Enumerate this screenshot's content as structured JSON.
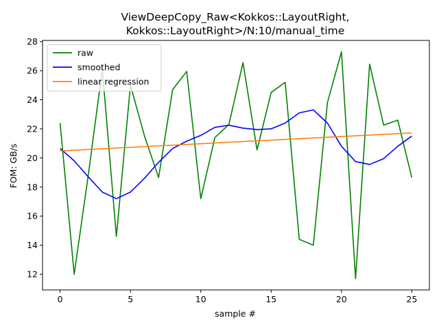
{
  "chart_data": {
    "type": "line",
    "title_lines": [
      "ViewDeepCopy_Raw<Kokkos::LayoutRight,",
      "Kokkos::LayoutRight>/N:10/manual_time"
    ],
    "xlabel": "sample #",
    "ylabel": "FOM: GB/s",
    "xlim": [
      -1.25,
      26.25
    ],
    "ylim": [
      10.92,
      28.08
    ],
    "xticks": [
      0,
      5,
      10,
      15,
      20,
      25
    ],
    "yticks": [
      12,
      14,
      16,
      18,
      20,
      22,
      24,
      26,
      28
    ],
    "legend_position": "upper-left",
    "grid": false,
    "series": [
      {
        "name": "raw",
        "color": "#008000",
        "x": [
          0,
          1,
          2,
          3,
          4,
          5,
          6,
          7,
          8,
          9,
          10,
          11,
          12,
          13,
          14,
          15,
          16,
          17,
          18,
          19,
          20,
          21,
          22,
          23,
          24,
          25
        ],
        "values": [
          22.4,
          12.0,
          18.8,
          26.1,
          14.6,
          25.0,
          21.5,
          18.65,
          24.7,
          25.95,
          17.2,
          21.4,
          22.3,
          26.55,
          20.55,
          24.5,
          25.2,
          14.4,
          14.0,
          23.8,
          27.3,
          11.7,
          26.45,
          22.25,
          22.6,
          18.65
        ]
      },
      {
        "name": "smoothed",
        "color": "#0000ff",
        "x": [
          0,
          1,
          2,
          3,
          4,
          5,
          6,
          7,
          8,
          9,
          10,
          11,
          12,
          13,
          14,
          15,
          16,
          17,
          18,
          19,
          20,
          21,
          22,
          23,
          24,
          25
        ],
        "values": [
          20.65,
          19.8,
          18.7,
          17.65,
          17.2,
          17.65,
          18.6,
          19.7,
          20.65,
          21.15,
          21.55,
          22.1,
          22.25,
          22.05,
          21.95,
          22.0,
          22.4,
          23.1,
          23.3,
          22.4,
          20.8,
          19.75,
          19.55,
          19.95,
          20.8,
          21.5
        ]
      },
      {
        "name": "linear regression",
        "color": "#ff7f0e",
        "x": [
          0,
          25
        ],
        "values": [
          20.48,
          21.72
        ]
      }
    ]
  }
}
